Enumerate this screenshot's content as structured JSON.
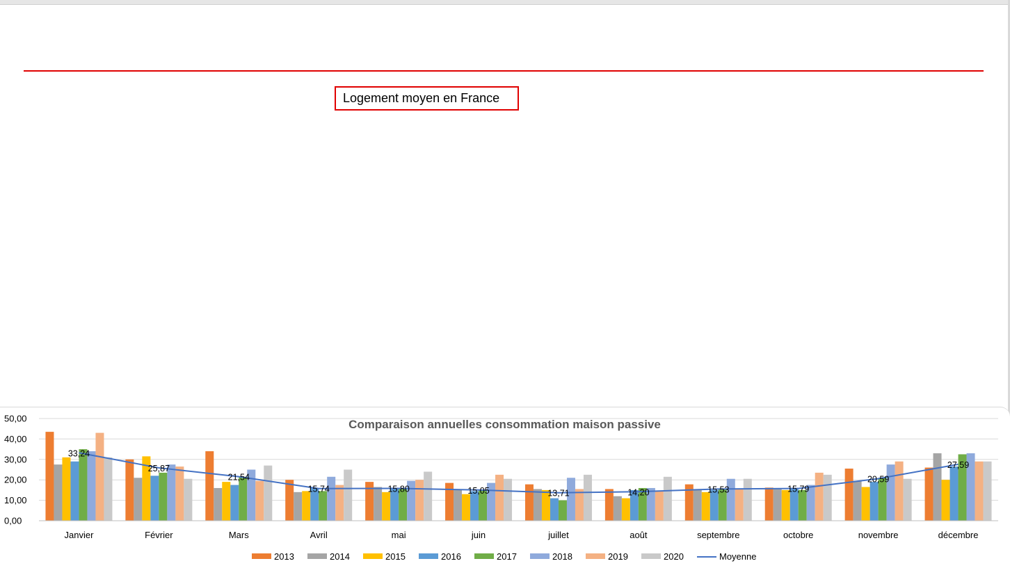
{
  "header": {
    "box_title": "Logement moyen en France"
  },
  "colors": {
    "2013": "#ed7d31",
    "2014": "#a5a5a5",
    "2015": "#ffc000",
    "2016": "#5b9bd5",
    "2017": "#70ad47",
    "2018": "#8faadc",
    "2019": "#f4b183",
    "2020": "#c9c9c9",
    "Moyenne": "#4472c4",
    "title_box_border": "#e00000",
    "rule": "#e00000"
  },
  "chart_data": {
    "type": "bar",
    "title": "Comparaison annuelles consommation maison passive",
    "xlabel": "",
    "ylabel": "",
    "ylim": [
      0,
      50
    ],
    "yticks": [
      "0,00",
      "10,00",
      "20,00",
      "30,00",
      "40,00",
      "50,00"
    ],
    "grid": true,
    "legend_position": "bottom",
    "categories": [
      "Janvier",
      "Février",
      "Mars",
      "Avril",
      "mai",
      "juin",
      "juillet",
      "août",
      "septembre",
      "octobre",
      "novembre",
      "décembre"
    ],
    "series": [
      {
        "name": "2013",
        "values": [
          43.5,
          30.0,
          34.0,
          20.0,
          19.0,
          18.5,
          17.8,
          15.5,
          17.8,
          16.2,
          25.5,
          26.0
        ]
      },
      {
        "name": "2014",
        "values": [
          27.5,
          21.0,
          16.0,
          14.0,
          16.5,
          15.0,
          15.5,
          12.0,
          15.5,
          15.5,
          19.5,
          33.0
        ]
      },
      {
        "name": "2015",
        "values": [
          31.0,
          31.5,
          19.0,
          14.5,
          14.0,
          13.0,
          15.0,
          11.0,
          14.0,
          15.0,
          16.5,
          20.0
        ]
      },
      {
        "name": "2016",
        "values": [
          29.0,
          22.0,
          17.5,
          16.0,
          15.5,
          14.5,
          11.0,
          15.0,
          15.0,
          16.0,
          19.0,
          26.5
        ]
      },
      {
        "name": "2017",
        "values": [
          35.0,
          23.5,
          21.5,
          14.5,
          15.5,
          15.0,
          10.0,
          16.0,
          15.5,
          15.0,
          21.0,
          32.5
        ]
      },
      {
        "name": "2018",
        "values": [
          34.0,
          27.5,
          25.0,
          21.5,
          19.5,
          18.5,
          21.0,
          16.0,
          20.5,
          17.5,
          27.5,
          33.0
        ]
      },
      {
        "name": "2019",
        "values": [
          43.0,
          26.5,
          19.5,
          17.5,
          20.0,
          22.5,
          15.5,
          14.5,
          15.5,
          23.5,
          29.0,
          29.0
        ]
      },
      {
        "name": "2020",
        "values": [
          31.0,
          20.5,
          27.0,
          25.0,
          24.0,
          20.5,
          22.5,
          21.5,
          20.5,
          22.5,
          20.5,
          29.0
        ]
      }
    ],
    "line_series": {
      "name": "Moyenne",
      "values": [
        33.24,
        25.87,
        21.54,
        15.74,
        15.8,
        15.05,
        13.71,
        14.2,
        15.53,
        15.79,
        20.59,
        27.59
      ],
      "labels": [
        "33,24",
        "25,87",
        "21,54",
        "15,74",
        "15,80",
        "15,05",
        "13,71",
        "14,20",
        "15,53",
        "15,79",
        "20,59",
        "27,59"
      ]
    }
  }
}
